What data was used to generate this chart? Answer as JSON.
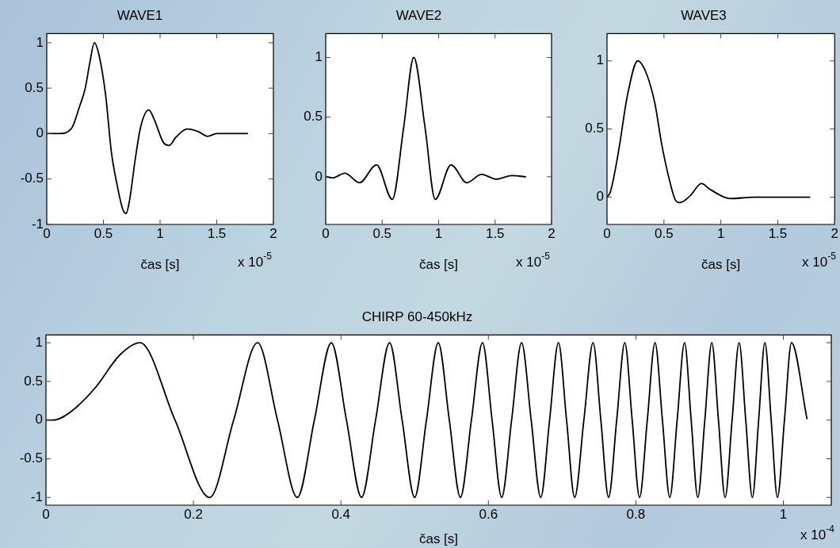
{
  "chart_data": [
    {
      "type": "line",
      "title": "WAVE1",
      "xlabel": "čas [s]",
      "annotations": [
        "x 10$^{-5}$"
      ],
      "color": "#000000",
      "marker": "none",
      "line_style": "solid",
      "grid": false,
      "xlim": [
        0,
        2
      ],
      "xticks": [
        0,
        0.5,
        1,
        1.5,
        2
      ],
      "ylim": [
        -1,
        1.1
      ],
      "yticks": [
        -1,
        -0.5,
        0,
        0.5,
        1
      ],
      "x": [
        0,
        0.11,
        0.22,
        0.29,
        0.34,
        0.38,
        0.42,
        0.46,
        0.52,
        0.57,
        0.62,
        0.67,
        0.7,
        0.73,
        0.78,
        0.83,
        0.9,
        0.95,
        1.03,
        1.08,
        1.14,
        1.24,
        1.34,
        1.42,
        1.5,
        1.77
      ],
      "values": [
        0,
        0,
        0.06,
        0.3,
        0.5,
        0.78,
        1,
        0.87,
        0.42,
        -0.2,
        -0.56,
        -0.83,
        -0.88,
        -0.74,
        -0.29,
        0.08,
        0.26,
        0.15,
        -0.1,
        -0.13,
        -0.04,
        0.05,
        0.02,
        -0.03,
        0,
        0
      ]
    },
    {
      "type": "line",
      "title": "WAVE2",
      "xlabel": "čas [s]",
      "annotations": [
        "x 10$^{-5}$"
      ],
      "color": "#000000",
      "marker": "none",
      "line_style": "solid",
      "grid": false,
      "xlim": [
        0,
        2
      ],
      "xticks": [
        0,
        0.5,
        1,
        1.5,
        2
      ],
      "ylim": [
        -0.4,
        1.2
      ],
      "yticks": [
        0,
        0.5,
        1
      ],
      "x": [
        0,
        0.06,
        0.17,
        0.3,
        0.45,
        0.59,
        0.69,
        0.78,
        0.88,
        0.97,
        1.11,
        1.25,
        1.38,
        1.51,
        1.65,
        1.77
      ],
      "values": [
        0,
        -0.01,
        0.03,
        -0.05,
        0.1,
        -0.19,
        0.41,
        1,
        0.41,
        -0.19,
        0.1,
        -0.05,
        0.02,
        -0.02,
        0.01,
        0
      ]
    },
    {
      "type": "line",
      "title": "WAVE3",
      "xlabel": "čas [s]",
      "annotations": [
        "x 10$^{-5}$"
      ],
      "color": "#000000",
      "marker": "none",
      "line_style": "solid",
      "grid": false,
      "xlim": [
        0,
        2
      ],
      "xticks": [
        0,
        0.5,
        1,
        1.5,
        2
      ],
      "ylim": [
        -0.2,
        1.2
      ],
      "yticks": [
        0,
        0.5,
        1
      ],
      "x": [
        0,
        0.03,
        0.1,
        0.18,
        0.27,
        0.34,
        0.42,
        0.48,
        0.55,
        0.6,
        0.64,
        0.73,
        0.83,
        0.9,
        1.03,
        1.08,
        1.3,
        1.78
      ],
      "values": [
        0,
        0.04,
        0.33,
        0.75,
        1,
        0.92,
        0.69,
        0.39,
        0.12,
        -0.02,
        -0.04,
        0.01,
        0.1,
        0.06,
        0,
        -0.01,
        0,
        0
      ]
    },
    {
      "type": "line",
      "title": "CHIRP 60-450kHz",
      "xlabel": "čas [s]",
      "annotations": [
        "x 10$^{-4}$"
      ],
      "color": "#000000",
      "marker": "none",
      "line_style": "solid",
      "grid": false,
      "xlim": [
        0,
        1.065
      ],
      "xticks": [
        0,
        0.2,
        0.4,
        0.6,
        0.8,
        1
      ],
      "ylim": [
        -1.1,
        1.1
      ],
      "yticks": [
        -1,
        -0.5,
        0,
        0.5,
        1
      ],
      "x": [
        0,
        0.01,
        0.034,
        0.067,
        0.1,
        0.1275,
        0.175,
        0.222,
        0.2545,
        0.287,
        0.314,
        0.341,
        0.364,
        0.387,
        0.4075,
        0.428,
        0.447,
        0.466,
        0.483,
        0.5,
        0.516,
        0.532,
        0.547,
        0.562,
        0.577,
        0.592,
        0.605,
        0.618,
        0.6315,
        0.645,
        0.658,
        0.671,
        0.683,
        0.695,
        0.706,
        0.717,
        0.7295,
        0.742,
        0.7525,
        0.763,
        0.774,
        0.785,
        0.795,
        0.805,
        0.8155,
        0.826,
        0.836,
        0.846,
        0.856,
        0.866,
        0.875,
        0.884,
        0.8935,
        0.903,
        0.912,
        0.921,
        0.9305,
        0.94,
        0.949,
        0.958,
        0.9665,
        0.975,
        0.9835,
        0.992,
        1.0015,
        1.011,
        1.032
      ],
      "values": [
        0,
        0,
        0.11,
        0.42,
        0.84,
        1,
        0,
        -1,
        0,
        1,
        0,
        -1,
        0,
        1,
        0,
        -1,
        0,
        1,
        0,
        -1,
        0,
        1,
        0,
        -1,
        0,
        1,
        0,
        -1,
        0,
        1,
        0,
        -1,
        0,
        1,
        0,
        -1,
        0,
        1,
        0,
        -1,
        0,
        1,
        0,
        -1,
        0,
        1,
        0,
        -1,
        0,
        1,
        0,
        -1,
        0,
        1,
        0,
        -1,
        0,
        1,
        0,
        -1,
        0,
        1,
        0,
        -1,
        0,
        1,
        0.02
      ]
    }
  ]
}
